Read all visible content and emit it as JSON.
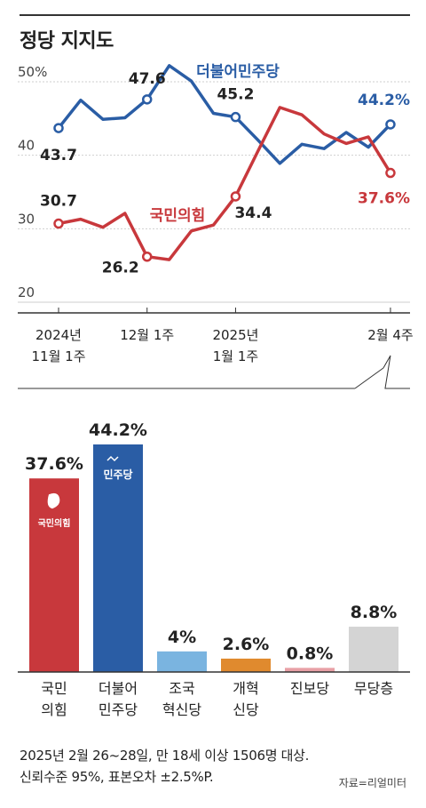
{
  "title": "정당 지지도",
  "chart_data": [
    {
      "type": "line",
      "ylim": [
        20,
        50
      ],
      "yticks": [
        "50%",
        "40",
        "30",
        "20"
      ],
      "xtick_labels": [
        {
          "lines": [
            "2024년",
            "11월 1주"
          ]
        },
        {
          "lines": [
            "12월 1주"
          ]
        },
        {
          "lines": [
            "2025년",
            "1월 1주"
          ]
        },
        {
          "lines": [
            "2월 4주"
          ]
        }
      ],
      "colors": {
        "democratic": "#2a5da5",
        "ppp": "#c8383c"
      },
      "series": [
        {
          "name": "더불어민주당",
          "values": [
            43.7,
            47.5,
            44.9,
            45.1,
            47.6,
            52.2,
            50.1,
            45.7,
            45.2,
            42.1,
            38.9,
            41.5,
            40.9,
            43.1,
            41.1,
            44.2
          ],
          "labels": [
            {
              "index": 0,
              "text": "43.7"
            },
            {
              "index": 4,
              "text": "47.6"
            },
            {
              "index": 8,
              "text": "45.2"
            },
            {
              "index": 15,
              "text": "44.2%"
            }
          ]
        },
        {
          "name": "국민의힘",
          "values": [
            30.7,
            31.3,
            30.2,
            32.1,
            26.2,
            25.8,
            29.7,
            30.5,
            34.4,
            40.5,
            46.5,
            45.5,
            42.9,
            41.6,
            42.5,
            37.6
          ],
          "labels": [
            {
              "index": 0,
              "text": "30.7"
            },
            {
              "index": 4,
              "text": "26.2"
            },
            {
              "index": 8,
              "text": "34.4"
            },
            {
              "index": 15,
              "text": "37.6%"
            }
          ]
        }
      ]
    },
    {
      "type": "bar",
      "categories": [
        {
          "lines": [
            "국민",
            "의힘"
          ]
        },
        {
          "lines": [
            "더불어",
            "민주당"
          ]
        },
        {
          "lines": [
            "조국",
            "혁신당"
          ]
        },
        {
          "lines": [
            "개혁",
            "신당"
          ]
        },
        {
          "lines": [
            "진보당"
          ]
        },
        {
          "lines": [
            "무당층"
          ]
        }
      ],
      "values": [
        37.6,
        44.2,
        4,
        2.6,
        0.8,
        8.8
      ],
      "value_labels": [
        "37.6%",
        "44.2%",
        "4%",
        "2.6%",
        "0.8%",
        "8.8%"
      ],
      "colors": [
        "#c8383c",
        "#2a5da5",
        "#7ab4e0",
        "#e08a2e",
        "#e8a0a6",
        "#d4d4d4"
      ],
      "logo_labels": [
        "국민의힘",
        "민주당"
      ]
    }
  ],
  "note": {
    "line1": "2025년 2월 26~28일, 만 18세 이상 1506명 대상.",
    "line2": "신뢰수준 95%, 표본오차 ±2.5%P.",
    "source": "자료=리얼미터"
  }
}
